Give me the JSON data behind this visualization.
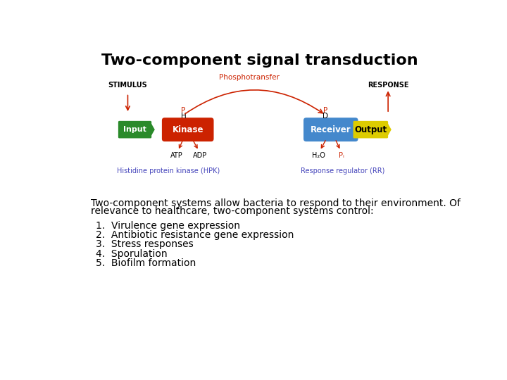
{
  "title": "Two-component signal transduction",
  "title_fontsize": 16,
  "title_fontweight": "bold",
  "bg_color": "#ffffff",
  "diagram": {
    "stimulus_label": "STIMULUS",
    "response_label": "RESPONSE",
    "phosphotransfer_label": "Phosphotransfer",
    "hpk_label": "Histidine protein kinase (HPK)",
    "rr_label": "Response regulator (RR)",
    "input_label": "Input",
    "kinase_label": "Kinase",
    "receiver_label": "Receiver",
    "output_label": "Output",
    "input_color": "#2a8a2a",
    "kinase_color": "#cc2200",
    "receiver_color": "#4488cc",
    "output_color": "#ddcc00",
    "arrow_color": "#cc2200",
    "label_color": "#4444bb",
    "atp_label": "ATP",
    "adp_label": "ADP",
    "h2o_label": "H₂O",
    "pi_label": "Pᵢ"
  },
  "body_text_line1": "Two-component systems allow bacteria to respond to their environment. Of",
  "body_text_line2": "relevance to healthcare, two-component systems control:",
  "list_items": [
    "Virulence gene expression",
    "Antibiotic resistance gene expression",
    "Stress responses",
    "Sporulation",
    "Biofilm formation"
  ],
  "body_fontsize": 10,
  "list_fontsize": 10
}
